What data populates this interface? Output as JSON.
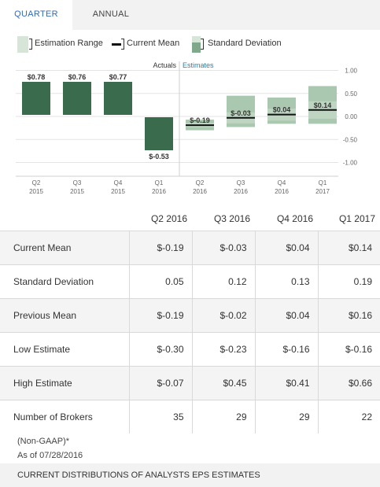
{
  "tabs": {
    "quarter": "QUARTER",
    "annual": "ANNUAL"
  },
  "legend": {
    "range": "Estimation Range",
    "mean": "Current Mean",
    "sd": "Standard Deviation"
  },
  "colors": {
    "actual": "#3a6b4c",
    "range": "#a9c8af",
    "sd": "#7fa98a",
    "tab_active": "#2e6bbd"
  },
  "chart_data": {
    "type": "bar",
    "section_labels": {
      "actuals": "Actuals",
      "estimates": "Estimates"
    },
    "ylim": [
      -1.0,
      1.0
    ],
    "y_ticks": [
      "1.00",
      "0.50",
      "0.00",
      "-0.50",
      "-1.00"
    ],
    "y_tick_values": [
      1.0,
      0.5,
      0.0,
      -0.5,
      -1.0
    ],
    "categories": [
      [
        "Q2",
        "2015"
      ],
      [
        "Q3",
        "2015"
      ],
      [
        "Q4",
        "2015"
      ],
      [
        "Q1",
        "2016"
      ],
      [
        "Q2",
        "2016"
      ],
      [
        "Q3",
        "2016"
      ],
      [
        "Q4",
        "2016"
      ],
      [
        "Q1",
        "2017"
      ]
    ],
    "actuals": [
      {
        "value": 0.78,
        "label": "$0.78"
      },
      {
        "value": 0.76,
        "label": "$0.76"
      },
      {
        "value": 0.77,
        "label": "$0.77"
      },
      {
        "value": -0.53,
        "label": "$-0.53"
      }
    ],
    "estimates": [
      {
        "mean": -0.19,
        "label": "$-0.19",
        "low": -0.3,
        "high": -0.07,
        "sd": 0.05
      },
      {
        "mean": -0.03,
        "label": "$-0.03",
        "low": -0.23,
        "high": 0.45,
        "sd": 0.12
      },
      {
        "mean": 0.04,
        "label": "$0.04",
        "low": -0.16,
        "high": 0.41,
        "sd": 0.13
      },
      {
        "mean": 0.14,
        "label": "$0.14",
        "low": -0.16,
        "high": 0.66,
        "sd": 0.19
      }
    ]
  },
  "table": {
    "columns": [
      "Q2 2016",
      "Q3 2016",
      "Q4 2016",
      "Q1 2017"
    ],
    "rows": [
      {
        "label": "Current Mean",
        "values": [
          "$-0.19",
          "$-0.03",
          "$0.04",
          "$0.14"
        ]
      },
      {
        "label": "Standard Deviation",
        "values": [
          "0.05",
          "0.12",
          "0.13",
          "0.19"
        ]
      },
      {
        "label": "Previous Mean",
        "values": [
          "$-0.19",
          "$-0.02",
          "$0.04",
          "$0.16"
        ]
      },
      {
        "label": "Low Estimate",
        "values": [
          "$-0.30",
          "$-0.23",
          "$-0.16",
          "$-0.16"
        ]
      },
      {
        "label": "High Estimate",
        "values": [
          "$-0.07",
          "$0.45",
          "$0.41",
          "$0.66"
        ]
      },
      {
        "label": "Number of Brokers",
        "values": [
          "35",
          "29",
          "29",
          "22"
        ]
      }
    ]
  },
  "notes": {
    "gaap": "(Non-GAAP)*",
    "asof": "As of 07/28/2016"
  },
  "footer": "CURRENT DISTRIBUTIONS OF ANALYSTS EPS ESTIMATES"
}
